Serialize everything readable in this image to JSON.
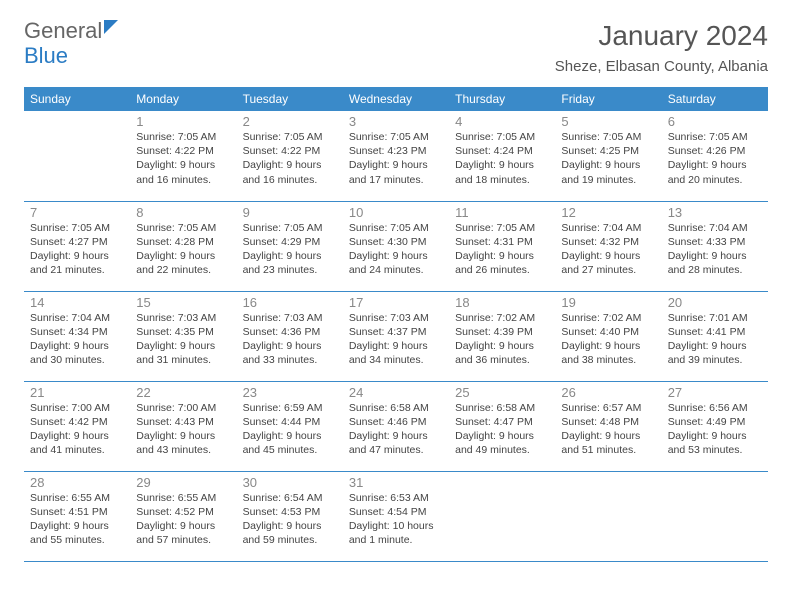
{
  "brand": {
    "part1": "General",
    "part2": "Blue"
  },
  "title": "January 2024",
  "location": "Sheze, Elbasan County, Albania",
  "colors": {
    "header_bg": "#3a8ac9",
    "header_text": "#ffffff",
    "row_border": "#3a8ac9",
    "brand_gray": "#666666",
    "brand_blue": "#2b7cc4",
    "daynum_color": "#888888",
    "cell_text_color": "#444444",
    "title_color": "#555555"
  },
  "typography": {
    "month_title_size": 28,
    "location_size": 15,
    "weekday_size": 12,
    "daynum_size": 13,
    "cell_size": 10.5
  },
  "weekdays": [
    "Sunday",
    "Monday",
    "Tuesday",
    "Wednesday",
    "Thursday",
    "Friday",
    "Saturday"
  ],
  "weeks": [
    [
      {
        "day": "",
        "sunrise": "",
        "sunset": "",
        "daylight": ""
      },
      {
        "day": "1",
        "sunrise": "Sunrise: 7:05 AM",
        "sunset": "Sunset: 4:22 PM",
        "daylight": "Daylight: 9 hours and 16 minutes."
      },
      {
        "day": "2",
        "sunrise": "Sunrise: 7:05 AM",
        "sunset": "Sunset: 4:22 PM",
        "daylight": "Daylight: 9 hours and 16 minutes."
      },
      {
        "day": "3",
        "sunrise": "Sunrise: 7:05 AM",
        "sunset": "Sunset: 4:23 PM",
        "daylight": "Daylight: 9 hours and 17 minutes."
      },
      {
        "day": "4",
        "sunrise": "Sunrise: 7:05 AM",
        "sunset": "Sunset: 4:24 PM",
        "daylight": "Daylight: 9 hours and 18 minutes."
      },
      {
        "day": "5",
        "sunrise": "Sunrise: 7:05 AM",
        "sunset": "Sunset: 4:25 PM",
        "daylight": "Daylight: 9 hours and 19 minutes."
      },
      {
        "day": "6",
        "sunrise": "Sunrise: 7:05 AM",
        "sunset": "Sunset: 4:26 PM",
        "daylight": "Daylight: 9 hours and 20 minutes."
      }
    ],
    [
      {
        "day": "7",
        "sunrise": "Sunrise: 7:05 AM",
        "sunset": "Sunset: 4:27 PM",
        "daylight": "Daylight: 9 hours and 21 minutes."
      },
      {
        "day": "8",
        "sunrise": "Sunrise: 7:05 AM",
        "sunset": "Sunset: 4:28 PM",
        "daylight": "Daylight: 9 hours and 22 minutes."
      },
      {
        "day": "9",
        "sunrise": "Sunrise: 7:05 AM",
        "sunset": "Sunset: 4:29 PM",
        "daylight": "Daylight: 9 hours and 23 minutes."
      },
      {
        "day": "10",
        "sunrise": "Sunrise: 7:05 AM",
        "sunset": "Sunset: 4:30 PM",
        "daylight": "Daylight: 9 hours and 24 minutes."
      },
      {
        "day": "11",
        "sunrise": "Sunrise: 7:05 AM",
        "sunset": "Sunset: 4:31 PM",
        "daylight": "Daylight: 9 hours and 26 minutes."
      },
      {
        "day": "12",
        "sunrise": "Sunrise: 7:04 AM",
        "sunset": "Sunset: 4:32 PM",
        "daylight": "Daylight: 9 hours and 27 minutes."
      },
      {
        "day": "13",
        "sunrise": "Sunrise: 7:04 AM",
        "sunset": "Sunset: 4:33 PM",
        "daylight": "Daylight: 9 hours and 28 minutes."
      }
    ],
    [
      {
        "day": "14",
        "sunrise": "Sunrise: 7:04 AM",
        "sunset": "Sunset: 4:34 PM",
        "daylight": "Daylight: 9 hours and 30 minutes."
      },
      {
        "day": "15",
        "sunrise": "Sunrise: 7:03 AM",
        "sunset": "Sunset: 4:35 PM",
        "daylight": "Daylight: 9 hours and 31 minutes."
      },
      {
        "day": "16",
        "sunrise": "Sunrise: 7:03 AM",
        "sunset": "Sunset: 4:36 PM",
        "daylight": "Daylight: 9 hours and 33 minutes."
      },
      {
        "day": "17",
        "sunrise": "Sunrise: 7:03 AM",
        "sunset": "Sunset: 4:37 PM",
        "daylight": "Daylight: 9 hours and 34 minutes."
      },
      {
        "day": "18",
        "sunrise": "Sunrise: 7:02 AM",
        "sunset": "Sunset: 4:39 PM",
        "daylight": "Daylight: 9 hours and 36 minutes."
      },
      {
        "day": "19",
        "sunrise": "Sunrise: 7:02 AM",
        "sunset": "Sunset: 4:40 PM",
        "daylight": "Daylight: 9 hours and 38 minutes."
      },
      {
        "day": "20",
        "sunrise": "Sunrise: 7:01 AM",
        "sunset": "Sunset: 4:41 PM",
        "daylight": "Daylight: 9 hours and 39 minutes."
      }
    ],
    [
      {
        "day": "21",
        "sunrise": "Sunrise: 7:00 AM",
        "sunset": "Sunset: 4:42 PM",
        "daylight": "Daylight: 9 hours and 41 minutes."
      },
      {
        "day": "22",
        "sunrise": "Sunrise: 7:00 AM",
        "sunset": "Sunset: 4:43 PM",
        "daylight": "Daylight: 9 hours and 43 minutes."
      },
      {
        "day": "23",
        "sunrise": "Sunrise: 6:59 AM",
        "sunset": "Sunset: 4:44 PM",
        "daylight": "Daylight: 9 hours and 45 minutes."
      },
      {
        "day": "24",
        "sunrise": "Sunrise: 6:58 AM",
        "sunset": "Sunset: 4:46 PM",
        "daylight": "Daylight: 9 hours and 47 minutes."
      },
      {
        "day": "25",
        "sunrise": "Sunrise: 6:58 AM",
        "sunset": "Sunset: 4:47 PM",
        "daylight": "Daylight: 9 hours and 49 minutes."
      },
      {
        "day": "26",
        "sunrise": "Sunrise: 6:57 AM",
        "sunset": "Sunset: 4:48 PM",
        "daylight": "Daylight: 9 hours and 51 minutes."
      },
      {
        "day": "27",
        "sunrise": "Sunrise: 6:56 AM",
        "sunset": "Sunset: 4:49 PM",
        "daylight": "Daylight: 9 hours and 53 minutes."
      }
    ],
    [
      {
        "day": "28",
        "sunrise": "Sunrise: 6:55 AM",
        "sunset": "Sunset: 4:51 PM",
        "daylight": "Daylight: 9 hours and 55 minutes."
      },
      {
        "day": "29",
        "sunrise": "Sunrise: 6:55 AM",
        "sunset": "Sunset: 4:52 PM",
        "daylight": "Daylight: 9 hours and 57 minutes."
      },
      {
        "day": "30",
        "sunrise": "Sunrise: 6:54 AM",
        "sunset": "Sunset: 4:53 PM",
        "daylight": "Daylight: 9 hours and 59 minutes."
      },
      {
        "day": "31",
        "sunrise": "Sunrise: 6:53 AM",
        "sunset": "Sunset: 4:54 PM",
        "daylight": "Daylight: 10 hours and 1 minute."
      },
      {
        "day": "",
        "sunrise": "",
        "sunset": "",
        "daylight": ""
      },
      {
        "day": "",
        "sunrise": "",
        "sunset": "",
        "daylight": ""
      },
      {
        "day": "",
        "sunrise": "",
        "sunset": "",
        "daylight": ""
      }
    ]
  ]
}
